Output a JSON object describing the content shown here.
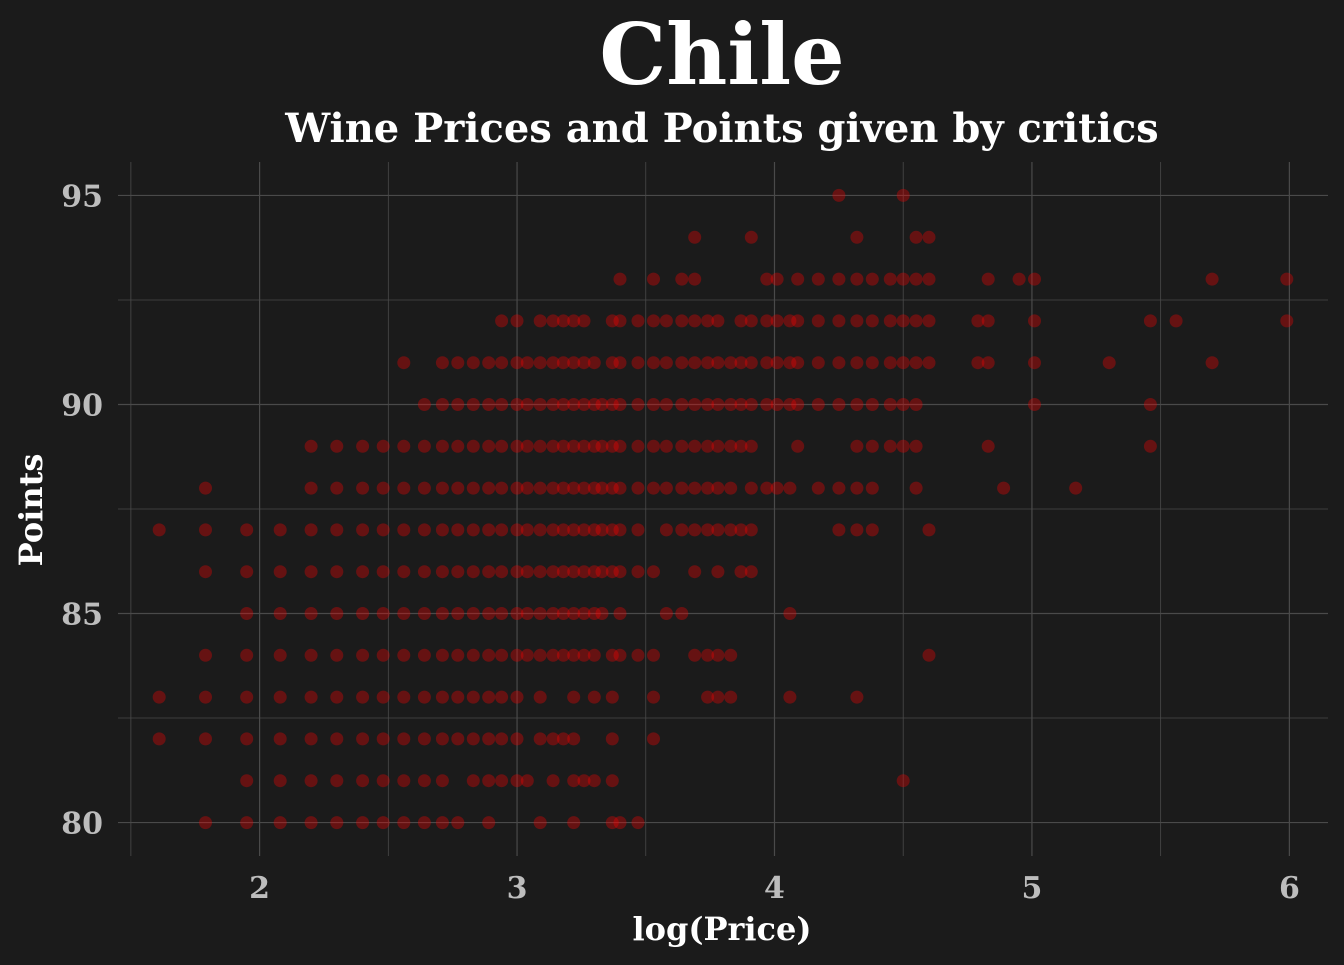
{
  "chart_data": {
    "type": "scatter",
    "title": "Chile",
    "subtitle": "Wine Prices and Points given by critics",
    "xlabel": "log(Price)",
    "ylabel": "Points",
    "xlim": [
      1.45,
      6.15
    ],
    "ylim": [
      79.2,
      95.8
    ],
    "xticks": [
      2,
      3,
      4,
      5,
      6
    ],
    "yticks": [
      80,
      85,
      90,
      95
    ],
    "grid": true,
    "marker_color": "#ff0000",
    "background_color": "#1b1b1b",
    "grid_color": "#4a4a4a",
    "text_color": "#ffffff",
    "tick_color": "#bdbdbd",
    "points": [
      [
        1.61,
        87
      ],
      [
        1.61,
        83
      ],
      [
        1.61,
        82
      ],
      [
        1.79,
        88
      ],
      [
        1.79,
        87
      ],
      [
        1.79,
        86
      ],
      [
        1.79,
        84
      ],
      [
        1.79,
        83
      ],
      [
        1.79,
        82
      ],
      [
        1.79,
        80
      ],
      [
        1.95,
        87
      ],
      [
        1.95,
        86
      ],
      [
        1.95,
        85
      ],
      [
        1.95,
        84
      ],
      [
        1.95,
        83
      ],
      [
        1.95,
        82
      ],
      [
        1.95,
        81
      ],
      [
        1.95,
        80
      ],
      [
        2.08,
        87
      ],
      [
        2.08,
        86
      ],
      [
        2.08,
        85
      ],
      [
        2.08,
        84
      ],
      [
        2.08,
        83
      ],
      [
        2.08,
        82
      ],
      [
        2.08,
        81
      ],
      [
        2.08,
        80
      ],
      [
        2.2,
        89
      ],
      [
        2.2,
        88
      ],
      [
        2.2,
        87
      ],
      [
        2.2,
        86
      ],
      [
        2.2,
        85
      ],
      [
        2.2,
        84
      ],
      [
        2.2,
        83
      ],
      [
        2.2,
        82
      ],
      [
        2.2,
        81
      ],
      [
        2.2,
        80
      ],
      [
        2.3,
        89
      ],
      [
        2.3,
        88
      ],
      [
        2.3,
        87
      ],
      [
        2.3,
        86
      ],
      [
        2.3,
        85
      ],
      [
        2.3,
        84
      ],
      [
        2.3,
        83
      ],
      [
        2.3,
        82
      ],
      [
        2.3,
        81
      ],
      [
        2.3,
        80
      ],
      [
        2.4,
        89
      ],
      [
        2.4,
        88
      ],
      [
        2.4,
        87
      ],
      [
        2.4,
        86
      ],
      [
        2.4,
        85
      ],
      [
        2.4,
        84
      ],
      [
        2.4,
        83
      ],
      [
        2.4,
        82
      ],
      [
        2.4,
        81
      ],
      [
        2.4,
        80
      ],
      [
        2.48,
        89
      ],
      [
        2.48,
        88
      ],
      [
        2.48,
        87
      ],
      [
        2.48,
        86
      ],
      [
        2.48,
        85
      ],
      [
        2.48,
        84
      ],
      [
        2.48,
        83
      ],
      [
        2.48,
        82
      ],
      [
        2.48,
        81
      ],
      [
        2.48,
        80
      ],
      [
        2.56,
        91
      ],
      [
        2.56,
        89
      ],
      [
        2.56,
        88
      ],
      [
        2.56,
        87
      ],
      [
        2.56,
        86
      ],
      [
        2.56,
        85
      ],
      [
        2.56,
        84
      ],
      [
        2.56,
        83
      ],
      [
        2.56,
        82
      ],
      [
        2.56,
        81
      ],
      [
        2.56,
        80
      ],
      [
        2.64,
        90
      ],
      [
        2.64,
        89
      ],
      [
        2.64,
        88
      ],
      [
        2.64,
        87
      ],
      [
        2.64,
        86
      ],
      [
        2.64,
        85
      ],
      [
        2.64,
        84
      ],
      [
        2.64,
        83
      ],
      [
        2.64,
        82
      ],
      [
        2.64,
        81
      ],
      [
        2.64,
        80
      ],
      [
        2.71,
        91
      ],
      [
        2.71,
        90
      ],
      [
        2.71,
        89
      ],
      [
        2.71,
        88
      ],
      [
        2.71,
        87
      ],
      [
        2.71,
        86
      ],
      [
        2.71,
        85
      ],
      [
        2.71,
        84
      ],
      [
        2.71,
        83
      ],
      [
        2.71,
        82
      ],
      [
        2.71,
        81
      ],
      [
        2.71,
        80
      ],
      [
        2.77,
        91
      ],
      [
        2.77,
        90
      ],
      [
        2.77,
        89
      ],
      [
        2.77,
        88
      ],
      [
        2.77,
        87
      ],
      [
        2.77,
        86
      ],
      [
        2.77,
        85
      ],
      [
        2.77,
        84
      ],
      [
        2.77,
        83
      ],
      [
        2.77,
        82
      ],
      [
        2.77,
        80
      ],
      [
        2.83,
        91
      ],
      [
        2.83,
        90
      ],
      [
        2.83,
        89
      ],
      [
        2.83,
        88
      ],
      [
        2.83,
        87
      ],
      [
        2.83,
        86
      ],
      [
        2.83,
        85
      ],
      [
        2.83,
        84
      ],
      [
        2.83,
        83
      ],
      [
        2.83,
        82
      ],
      [
        2.83,
        81
      ],
      [
        2.89,
        91
      ],
      [
        2.89,
        90
      ],
      [
        2.89,
        89
      ],
      [
        2.89,
        88
      ],
      [
        2.89,
        87
      ],
      [
        2.89,
        86
      ],
      [
        2.89,
        85
      ],
      [
        2.89,
        84
      ],
      [
        2.89,
        83
      ],
      [
        2.89,
        82
      ],
      [
        2.89,
        81
      ],
      [
        2.89,
        80
      ],
      [
        2.94,
        92
      ],
      [
        2.94,
        91
      ],
      [
        2.94,
        90
      ],
      [
        2.94,
        89
      ],
      [
        2.94,
        88
      ],
      [
        2.94,
        87
      ],
      [
        2.94,
        86
      ],
      [
        2.94,
        85
      ],
      [
        2.94,
        84
      ],
      [
        2.94,
        83
      ],
      [
        2.94,
        82
      ],
      [
        2.94,
        81
      ],
      [
        3.0,
        92
      ],
      [
        3.0,
        91
      ],
      [
        3.0,
        90
      ],
      [
        3.0,
        89
      ],
      [
        3.0,
        88
      ],
      [
        3.0,
        87
      ],
      [
        3.0,
        86
      ],
      [
        3.0,
        85
      ],
      [
        3.0,
        84
      ],
      [
        3.0,
        83
      ],
      [
        3.0,
        82
      ],
      [
        3.0,
        81
      ],
      [
        3.04,
        91
      ],
      [
        3.04,
        90
      ],
      [
        3.04,
        89
      ],
      [
        3.04,
        88
      ],
      [
        3.04,
        87
      ],
      [
        3.04,
        86
      ],
      [
        3.04,
        85
      ],
      [
        3.04,
        84
      ],
      [
        3.04,
        81
      ],
      [
        3.09,
        92
      ],
      [
        3.09,
        91
      ],
      [
        3.09,
        90
      ],
      [
        3.09,
        89
      ],
      [
        3.09,
        88
      ],
      [
        3.09,
        87
      ],
      [
        3.09,
        86
      ],
      [
        3.09,
        85
      ],
      [
        3.09,
        84
      ],
      [
        3.09,
        83
      ],
      [
        3.09,
        82
      ],
      [
        3.09,
        80
      ],
      [
        3.14,
        92
      ],
      [
        3.14,
        91
      ],
      [
        3.14,
        90
      ],
      [
        3.14,
        89
      ],
      [
        3.14,
        88
      ],
      [
        3.14,
        87
      ],
      [
        3.14,
        86
      ],
      [
        3.14,
        85
      ],
      [
        3.14,
        84
      ],
      [
        3.14,
        82
      ],
      [
        3.14,
        81
      ],
      [
        3.18,
        92
      ],
      [
        3.18,
        91
      ],
      [
        3.18,
        90
      ],
      [
        3.18,
        89
      ],
      [
        3.18,
        88
      ],
      [
        3.18,
        87
      ],
      [
        3.18,
        86
      ],
      [
        3.18,
        85
      ],
      [
        3.18,
        84
      ],
      [
        3.18,
        82
      ],
      [
        3.22,
        92
      ],
      [
        3.22,
        91
      ],
      [
        3.22,
        90
      ],
      [
        3.22,
        89
      ],
      [
        3.22,
        88
      ],
      [
        3.22,
        87
      ],
      [
        3.22,
        86
      ],
      [
        3.22,
        85
      ],
      [
        3.22,
        84
      ],
      [
        3.22,
        83
      ],
      [
        3.22,
        82
      ],
      [
        3.22,
        81
      ],
      [
        3.22,
        80
      ],
      [
        3.26,
        92
      ],
      [
        3.26,
        91
      ],
      [
        3.26,
        90
      ],
      [
        3.26,
        89
      ],
      [
        3.26,
        88
      ],
      [
        3.26,
        87
      ],
      [
        3.26,
        86
      ],
      [
        3.26,
        85
      ],
      [
        3.26,
        84
      ],
      [
        3.26,
        81
      ],
      [
        3.3,
        91
      ],
      [
        3.3,
        90
      ],
      [
        3.3,
        89
      ],
      [
        3.3,
        88
      ],
      [
        3.3,
        87
      ],
      [
        3.3,
        86
      ],
      [
        3.3,
        85
      ],
      [
        3.3,
        84
      ],
      [
        3.3,
        83
      ],
      [
        3.3,
        81
      ],
      [
        3.33,
        90
      ],
      [
        3.33,
        89
      ],
      [
        3.33,
        88
      ],
      [
        3.33,
        87
      ],
      [
        3.33,
        86
      ],
      [
        3.33,
        85
      ],
      [
        3.37,
        92
      ],
      [
        3.37,
        91
      ],
      [
        3.37,
        90
      ],
      [
        3.37,
        89
      ],
      [
        3.37,
        88
      ],
      [
        3.37,
        87
      ],
      [
        3.37,
        86
      ],
      [
        3.37,
        84
      ],
      [
        3.37,
        83
      ],
      [
        3.37,
        82
      ],
      [
        3.37,
        81
      ],
      [
        3.37,
        80
      ],
      [
        3.4,
        93
      ],
      [
        3.4,
        92
      ],
      [
        3.4,
        91
      ],
      [
        3.4,
        90
      ],
      [
        3.4,
        89
      ],
      [
        3.4,
        88
      ],
      [
        3.4,
        87
      ],
      [
        3.4,
        86
      ],
      [
        3.4,
        85
      ],
      [
        3.4,
        84
      ],
      [
        3.4,
        80
      ],
      [
        3.47,
        92
      ],
      [
        3.47,
        91
      ],
      [
        3.47,
        90
      ],
      [
        3.47,
        89
      ],
      [
        3.47,
        88
      ],
      [
        3.47,
        87
      ],
      [
        3.47,
        86
      ],
      [
        3.47,
        84
      ],
      [
        3.47,
        80
      ],
      [
        3.53,
        93
      ],
      [
        3.53,
        92
      ],
      [
        3.53,
        91
      ],
      [
        3.53,
        90
      ],
      [
        3.53,
        89
      ],
      [
        3.53,
        88
      ],
      [
        3.53,
        86
      ],
      [
        3.53,
        84
      ],
      [
        3.53,
        83
      ],
      [
        3.53,
        82
      ],
      [
        3.58,
        92
      ],
      [
        3.58,
        91
      ],
      [
        3.58,
        90
      ],
      [
        3.58,
        89
      ],
      [
        3.58,
        88
      ],
      [
        3.58,
        87
      ],
      [
        3.58,
        85
      ],
      [
        3.64,
        93
      ],
      [
        3.64,
        92
      ],
      [
        3.64,
        91
      ],
      [
        3.64,
        90
      ],
      [
        3.64,
        89
      ],
      [
        3.64,
        88
      ],
      [
        3.64,
        87
      ],
      [
        3.64,
        85
      ],
      [
        3.69,
        94
      ],
      [
        3.69,
        93
      ],
      [
        3.69,
        92
      ],
      [
        3.69,
        91
      ],
      [
        3.69,
        90
      ],
      [
        3.69,
        89
      ],
      [
        3.69,
        88
      ],
      [
        3.69,
        87
      ],
      [
        3.69,
        86
      ],
      [
        3.69,
        84
      ],
      [
        3.74,
        92
      ],
      [
        3.74,
        91
      ],
      [
        3.74,
        90
      ],
      [
        3.74,
        89
      ],
      [
        3.74,
        88
      ],
      [
        3.74,
        87
      ],
      [
        3.74,
        84
      ],
      [
        3.74,
        83
      ],
      [
        3.78,
        92
      ],
      [
        3.78,
        91
      ],
      [
        3.78,
        90
      ],
      [
        3.78,
        89
      ],
      [
        3.78,
        88
      ],
      [
        3.78,
        87
      ],
      [
        3.78,
        86
      ],
      [
        3.78,
        84
      ],
      [
        3.78,
        83
      ],
      [
        3.83,
        91
      ],
      [
        3.83,
        90
      ],
      [
        3.83,
        89
      ],
      [
        3.83,
        88
      ],
      [
        3.83,
        87
      ],
      [
        3.83,
        84
      ],
      [
        3.83,
        83
      ],
      [
        3.87,
        92
      ],
      [
        3.87,
        91
      ],
      [
        3.87,
        90
      ],
      [
        3.87,
        89
      ],
      [
        3.87,
        87
      ],
      [
        3.87,
        86
      ],
      [
        3.91,
        94
      ],
      [
        3.91,
        92
      ],
      [
        3.91,
        91
      ],
      [
        3.91,
        90
      ],
      [
        3.91,
        89
      ],
      [
        3.91,
        88
      ],
      [
        3.91,
        87
      ],
      [
        3.91,
        86
      ],
      [
        3.97,
        93
      ],
      [
        3.97,
        92
      ],
      [
        3.97,
        91
      ],
      [
        3.97,
        90
      ],
      [
        3.97,
        88
      ],
      [
        4.01,
        93
      ],
      [
        4.01,
        92
      ],
      [
        4.01,
        91
      ],
      [
        4.01,
        90
      ],
      [
        4.01,
        88
      ],
      [
        4.06,
        92
      ],
      [
        4.06,
        91
      ],
      [
        4.06,
        90
      ],
      [
        4.06,
        88
      ],
      [
        4.06,
        85
      ],
      [
        4.06,
        83
      ],
      [
        4.09,
        93
      ],
      [
        4.09,
        92
      ],
      [
        4.09,
        91
      ],
      [
        4.09,
        90
      ],
      [
        4.09,
        89
      ],
      [
        4.17,
        93
      ],
      [
        4.17,
        92
      ],
      [
        4.17,
        91
      ],
      [
        4.17,
        90
      ],
      [
        4.17,
        88
      ],
      [
        4.25,
        95
      ],
      [
        4.25,
        93
      ],
      [
        4.25,
        92
      ],
      [
        4.25,
        91
      ],
      [
        4.25,
        90
      ],
      [
        4.25,
        88
      ],
      [
        4.25,
        87
      ],
      [
        4.32,
        94
      ],
      [
        4.32,
        93
      ],
      [
        4.32,
        92
      ],
      [
        4.32,
        91
      ],
      [
        4.32,
        90
      ],
      [
        4.32,
        89
      ],
      [
        4.32,
        88
      ],
      [
        4.32,
        87
      ],
      [
        4.32,
        83
      ],
      [
        4.38,
        93
      ],
      [
        4.38,
        92
      ],
      [
        4.38,
        91
      ],
      [
        4.38,
        90
      ],
      [
        4.38,
        89
      ],
      [
        4.38,
        88
      ],
      [
        4.38,
        87
      ],
      [
        4.45,
        93
      ],
      [
        4.45,
        92
      ],
      [
        4.45,
        91
      ],
      [
        4.45,
        90
      ],
      [
        4.45,
        89
      ],
      [
        4.5,
        95
      ],
      [
        4.5,
        93
      ],
      [
        4.5,
        92
      ],
      [
        4.5,
        91
      ],
      [
        4.5,
        90
      ],
      [
        4.5,
        89
      ],
      [
        4.5,
        81
      ],
      [
        4.55,
        94
      ],
      [
        4.55,
        93
      ],
      [
        4.55,
        92
      ],
      [
        4.55,
        91
      ],
      [
        4.55,
        90
      ],
      [
        4.55,
        89
      ],
      [
        4.55,
        88
      ],
      [
        4.6,
        94
      ],
      [
        4.6,
        93
      ],
      [
        4.6,
        92
      ],
      [
        4.6,
        91
      ],
      [
        4.6,
        87
      ],
      [
        4.6,
        84
      ],
      [
        4.79,
        92
      ],
      [
        4.79,
        91
      ],
      [
        4.83,
        93
      ],
      [
        4.83,
        92
      ],
      [
        4.83,
        91
      ],
      [
        4.83,
        89
      ],
      [
        4.89,
        88
      ],
      [
        4.95,
        93
      ],
      [
        5.01,
        93
      ],
      [
        5.01,
        92
      ],
      [
        5.01,
        91
      ],
      [
        5.01,
        90
      ],
      [
        5.17,
        88
      ],
      [
        5.3,
        91
      ],
      [
        5.46,
        92
      ],
      [
        5.46,
        90
      ],
      [
        5.46,
        89
      ],
      [
        5.56,
        92
      ],
      [
        5.7,
        93
      ],
      [
        5.7,
        91
      ],
      [
        5.99,
        93
      ],
      [
        5.99,
        92
      ]
    ]
  }
}
